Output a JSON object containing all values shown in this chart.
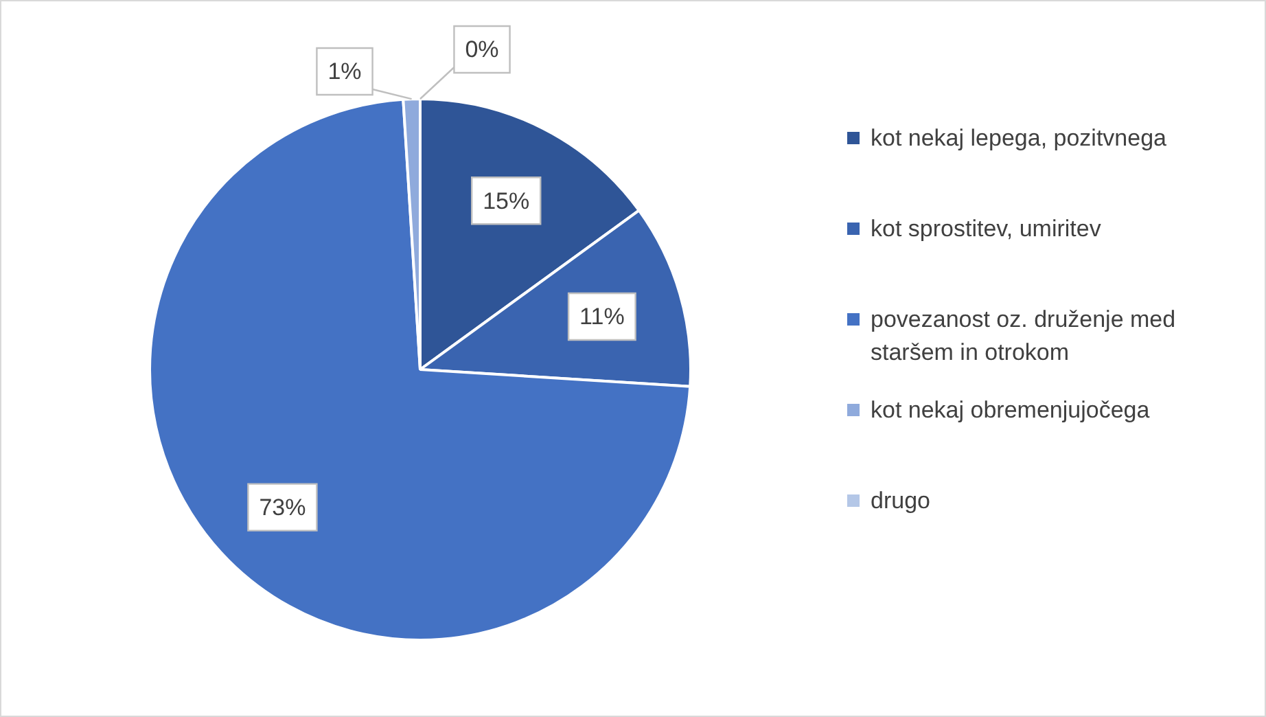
{
  "chart_data": {
    "type": "pie",
    "categories": [
      "kot nekaj lepega, pozitvnega",
      "kot sprostitev, umiritev",
      "povezanost oz. druženje med staršem in otrokom",
      "kot nekaj obremenjujočega",
      "drugo"
    ],
    "values": [
      15,
      11,
      73,
      1,
      0
    ],
    "colors": [
      "#2f5597",
      "#3a64b0",
      "#4472c4",
      "#8faadc",
      "#b4c7e7"
    ],
    "value_labels": [
      "15%",
      "11%",
      "73%",
      "1%",
      "0%"
    ],
    "legend": "right"
  }
}
